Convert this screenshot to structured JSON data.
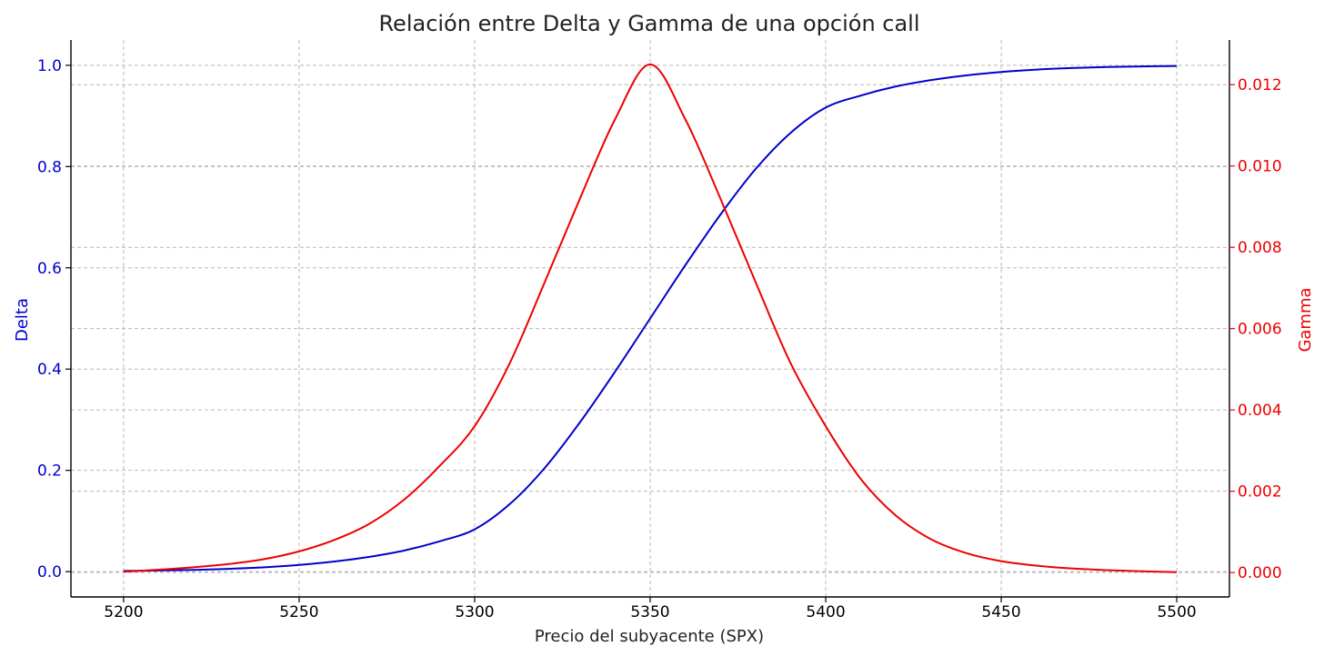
{
  "chart_data": {
    "type": "line",
    "title": "Relación entre Delta y Gamma de una opción call",
    "xlabel": "Precio del subyacente (SPX)",
    "ylabel_left": "Delta",
    "ylabel_right": "Gamma",
    "xlim": [
      5185,
      5515
    ],
    "ylim_left": [
      -0.05,
      1.05
    ],
    "ylim_right": [
      -0.0006,
      0.0131
    ],
    "x_ticks": [
      5200,
      5250,
      5300,
      5350,
      5400,
      5450,
      5500
    ],
    "x_tick_labels": [
      "5200",
      "5250",
      "5300",
      "5350",
      "5400",
      "5450",
      "5500"
    ],
    "y_left_ticks": [
      0.0,
      0.2,
      0.4,
      0.6,
      0.8,
      1.0
    ],
    "y_left_tick_labels": [
      "0.0",
      "0.2",
      "0.4",
      "0.6",
      "0.8",
      "1.0"
    ],
    "y_right_ticks": [
      0.0,
      0.002,
      0.004,
      0.006,
      0.008,
      0.01,
      0.012
    ],
    "y_right_tick_labels": [
      "0.000",
      "0.002",
      "0.004",
      "0.006",
      "0.008",
      "0.010",
      "0.012"
    ],
    "grid": true,
    "colors": {
      "delta": "#0000cc",
      "gamma": "#ee0000",
      "left_axis_text": "#0000cc",
      "right_axis_text": "#ee0000"
    },
    "series": [
      {
        "axis": "left",
        "x": [
          5200,
          5210,
          5220,
          5230,
          5240,
          5250,
          5260,
          5270,
          5280,
          5290,
          5300,
          5310,
          5320,
          5330,
          5340,
          5350,
          5360,
          5370,
          5380,
          5390,
          5400,
          5410,
          5420,
          5430,
          5440,
          5450,
          5460,
          5470,
          5480,
          5490,
          5500
        ],
        "values": [
          0.0013,
          0.0022,
          0.0035,
          0.0055,
          0.0085,
          0.0132,
          0.0199,
          0.0292,
          0.0418,
          0.0598,
          0.0835,
          0.1334,
          0.2051,
          0.295,
          0.395,
          0.5,
          0.605,
          0.705,
          0.7949,
          0.8666,
          0.9165,
          0.9402,
          0.9582,
          0.9708,
          0.9801,
          0.9868,
          0.9915,
          0.9945,
          0.9965,
          0.9978,
          0.9987
        ]
      },
      {
        "axis": "right",
        "x": [
          5200,
          5210,
          5220,
          5230,
          5240,
          5250,
          5260,
          5270,
          5280,
          5290,
          5300,
          5310,
          5320,
          5330,
          5340,
          5350,
          5360,
          5370,
          5380,
          5390,
          5400,
          5410,
          5420,
          5430,
          5440,
          5450,
          5460,
          5470,
          5480,
          5490,
          5500
        ],
        "values": [
          2e-05,
          7e-05,
          0.00013,
          0.00021,
          0.00033,
          0.00052,
          0.0008,
          0.0012,
          0.0018,
          0.00262,
          0.0036,
          0.00515,
          0.00715,
          0.0092,
          0.01115,
          0.0125,
          0.01115,
          0.0092,
          0.00715,
          0.00515,
          0.0036,
          0.0023,
          0.0014,
          0.00082,
          0.00048,
          0.00028,
          0.00017,
          0.0001,
          6e-05,
          3e-05,
          1e-05
        ]
      }
    ]
  }
}
